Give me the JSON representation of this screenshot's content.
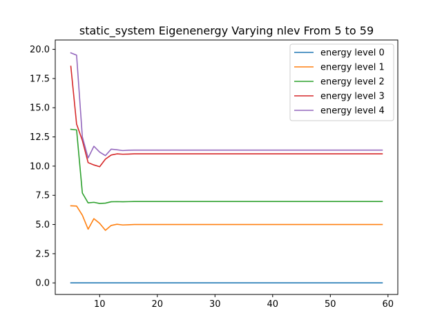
{
  "chart_data": {
    "type": "line",
    "title": "static_system Eigenenergy Varying nlev From 5 to 59",
    "xlabel": "",
    "ylabel": "",
    "xlim": [
      2.3,
      61.7
    ],
    "ylim": [
      -0.99,
      20.8
    ],
    "xticks": [
      10,
      20,
      30,
      40,
      50,
      60
    ],
    "yticks": [
      0.0,
      2.5,
      5.0,
      7.5,
      10.0,
      12.5,
      15.0,
      17.5,
      20.0
    ],
    "xtick_labels": [
      "10",
      "20",
      "30",
      "40",
      "50",
      "60"
    ],
    "ytick_labels": [
      "0.0",
      "2.5",
      "5.0",
      "7.5",
      "10.0",
      "12.5",
      "15.0",
      "17.5",
      "20.0"
    ],
    "grid": false,
    "legend_position": "top-right",
    "x": [
      5,
      6,
      7,
      8,
      9,
      10,
      11,
      12,
      13,
      14,
      15,
      16,
      17,
      18,
      19,
      20,
      59
    ],
    "series": [
      {
        "name": "energy level 0",
        "color": "#1f77b4",
        "values": [
          0,
          0,
          0,
          0,
          0,
          0,
          0,
          0,
          0,
          0,
          0,
          0,
          0,
          0,
          0,
          0,
          0
        ]
      },
      {
        "name": "energy level 1",
        "color": "#ff7f0e",
        "values": [
          6.6,
          6.58,
          5.8,
          4.6,
          5.5,
          5.1,
          4.5,
          4.92,
          5.02,
          4.96,
          4.98,
          5.0,
          5.0,
          5.0,
          5.0,
          5.0,
          5.0
        ]
      },
      {
        "name": "energy level 2",
        "color": "#2ca02c",
        "values": [
          13.15,
          13.1,
          7.7,
          6.85,
          6.9,
          6.8,
          6.83,
          6.95,
          6.96,
          6.95,
          6.96,
          6.97,
          6.97,
          6.97,
          6.97,
          6.97,
          6.97
        ]
      },
      {
        "name": "energy level 3",
        "color": "#d62728",
        "values": [
          18.55,
          13.6,
          12.2,
          10.3,
          10.1,
          9.95,
          10.6,
          10.95,
          11.05,
          11.02,
          11.03,
          11.05,
          11.05,
          11.05,
          11.05,
          11.05,
          11.05
        ]
      },
      {
        "name": "energy level 4",
        "color": "#9467bd",
        "values": [
          19.7,
          19.5,
          12.5,
          10.7,
          11.7,
          11.2,
          10.9,
          11.45,
          11.4,
          11.33,
          11.36,
          11.37,
          11.37,
          11.37,
          11.37,
          11.37,
          11.37
        ]
      }
    ]
  }
}
